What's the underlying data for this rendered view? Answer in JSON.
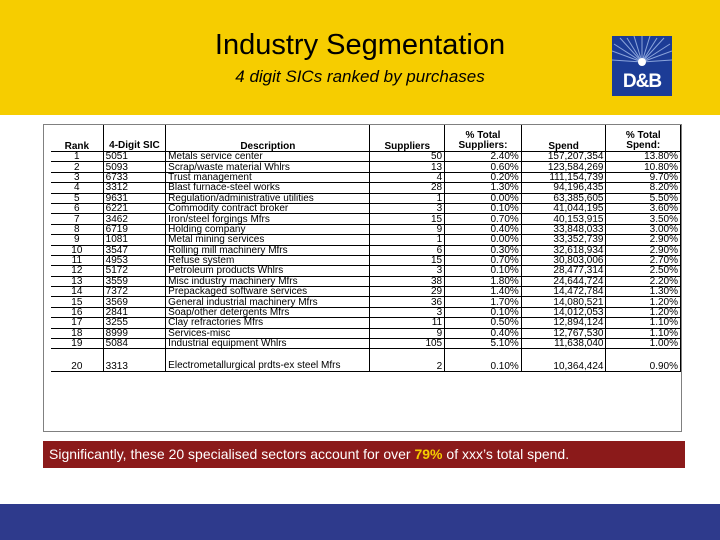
{
  "header": {
    "title": "Industry Segmentation",
    "subtitle": "4 digit SICs ranked by purchases",
    "logo_text": "D&B",
    "logo_icon": "dnb-logo-icon",
    "colors": {
      "band": "#f6cd00",
      "logo_bg": "#1c3c96"
    }
  },
  "table": {
    "headers": {
      "rank": "Rank",
      "sic": "4-Digit SIC",
      "description": "Description",
      "suppliers": "Suppliers",
      "pct_suppliers": "% Total Suppliers:",
      "spend": "Spend",
      "pct_spend": "% Total Spend:"
    },
    "rows": [
      {
        "rank": "1",
        "sic": "5051",
        "description": "Metals service center",
        "suppliers": "50",
        "pct_suppliers": "2.40%",
        "spend": "157,207,354",
        "pct_spend": "13.80%"
      },
      {
        "rank": "2",
        "sic": "5093",
        "description": "Scrap/waste material Whlrs",
        "suppliers": "13",
        "pct_suppliers": "0.60%",
        "spend": "123,584,269",
        "pct_spend": "10.80%"
      },
      {
        "rank": "3",
        "sic": "6733",
        "description": "Trust management",
        "suppliers": "4",
        "pct_suppliers": "0.20%",
        "spend": "111,154,739",
        "pct_spend": "9.70%"
      },
      {
        "rank": "4",
        "sic": "3312",
        "description": "Blast furnace-steel works",
        "suppliers": "28",
        "pct_suppliers": "1.30%",
        "spend": "94,196,435",
        "pct_spend": "8.20%"
      },
      {
        "rank": "5",
        "sic": "9631",
        "description": "Regulation/administrative utilities",
        "suppliers": "1",
        "pct_suppliers": "0.00%",
        "spend": "63,385,605",
        "pct_spend": "5.50%"
      },
      {
        "rank": "6",
        "sic": "6221",
        "description": "Commodity contract broker",
        "suppliers": "3",
        "pct_suppliers": "0.10%",
        "spend": "41,044,195",
        "pct_spend": "3.60%"
      },
      {
        "rank": "7",
        "sic": "3462",
        "description": "Iron/steel forgings Mfrs",
        "suppliers": "15",
        "pct_suppliers": "0.70%",
        "spend": "40,153,915",
        "pct_spend": "3.50%"
      },
      {
        "rank": "8",
        "sic": "6719",
        "description": "Holding company",
        "suppliers": "9",
        "pct_suppliers": "0.40%",
        "spend": "33,848,033",
        "pct_spend": "3.00%"
      },
      {
        "rank": "9",
        "sic": "1081",
        "description": "Metal mining services",
        "suppliers": "1",
        "pct_suppliers": "0.00%",
        "spend": "33,352,739",
        "pct_spend": "2.90%"
      },
      {
        "rank": "10",
        "sic": "3547",
        "description": "Rolling mill machinery Mfrs",
        "suppliers": "6",
        "pct_suppliers": "0.30%",
        "spend": "32,618,934",
        "pct_spend": "2.90%"
      },
      {
        "rank": "11",
        "sic": "4953",
        "description": "Refuse system",
        "suppliers": "15",
        "pct_suppliers": "0.70%",
        "spend": "30,803,006",
        "pct_spend": "2.70%"
      },
      {
        "rank": "12",
        "sic": "5172",
        "description": "Petroleum products Whlrs",
        "suppliers": "3",
        "pct_suppliers": "0.10%",
        "spend": "28,477,314",
        "pct_spend": "2.50%"
      },
      {
        "rank": "13",
        "sic": "3559",
        "description": "Misc industry machinery Mfrs",
        "suppliers": "38",
        "pct_suppliers": "1.80%",
        "spend": "24,644,724",
        "pct_spend": "2.20%"
      },
      {
        "rank": "14",
        "sic": "7372",
        "description": "Prepackaged software services",
        "suppliers": "29",
        "pct_suppliers": "1.40%",
        "spend": "14,472,784",
        "pct_spend": "1.30%"
      },
      {
        "rank": "15",
        "sic": "3569",
        "description": "General industrial machinery Mfrs",
        "suppliers": "36",
        "pct_suppliers": "1.70%",
        "spend": "14,080,521",
        "pct_spend": "1.20%"
      },
      {
        "rank": "16",
        "sic": "2841",
        "description": "Soap/other detergents Mfrs",
        "suppliers": "3",
        "pct_suppliers": "0.10%",
        "spend": "14,012,053",
        "pct_spend": "1.20%"
      },
      {
        "rank": "17",
        "sic": "3255",
        "description": "Clay refractories Mfrs",
        "suppliers": "11",
        "pct_suppliers": "0.50%",
        "spend": "12,894,124",
        "pct_spend": "1.10%"
      },
      {
        "rank": "18",
        "sic": "8999",
        "description": "Services-misc",
        "suppliers": "9",
        "pct_suppliers": "0.40%",
        "spend": "12,767,530",
        "pct_spend": "1.10%"
      },
      {
        "rank": "19",
        "sic": "5084",
        "description": "Industrial equipment Whlrs",
        "suppliers": "105",
        "pct_suppliers": "5.10%",
        "spend": "11,638,040",
        "pct_spend": "1.00%"
      },
      {
        "rank": "20",
        "sic": "3313",
        "description": "Electrometallurgical prdts-ex steel Mfrs",
        "suppliers": "2",
        "pct_suppliers": "0.10%",
        "spend": "10,364,424",
        "pct_spend": "0.90%"
      }
    ]
  },
  "callout": {
    "before": "Significantly, these 20 specialised sectors account for over ",
    "highlight": "79%",
    "after": " of xxx’s total spend.",
    "colors": {
      "bg": "#8b1a1a",
      "highlight": "#f6cd00"
    }
  },
  "footer": {
    "colors": {
      "band": "#2e3a8c"
    }
  }
}
